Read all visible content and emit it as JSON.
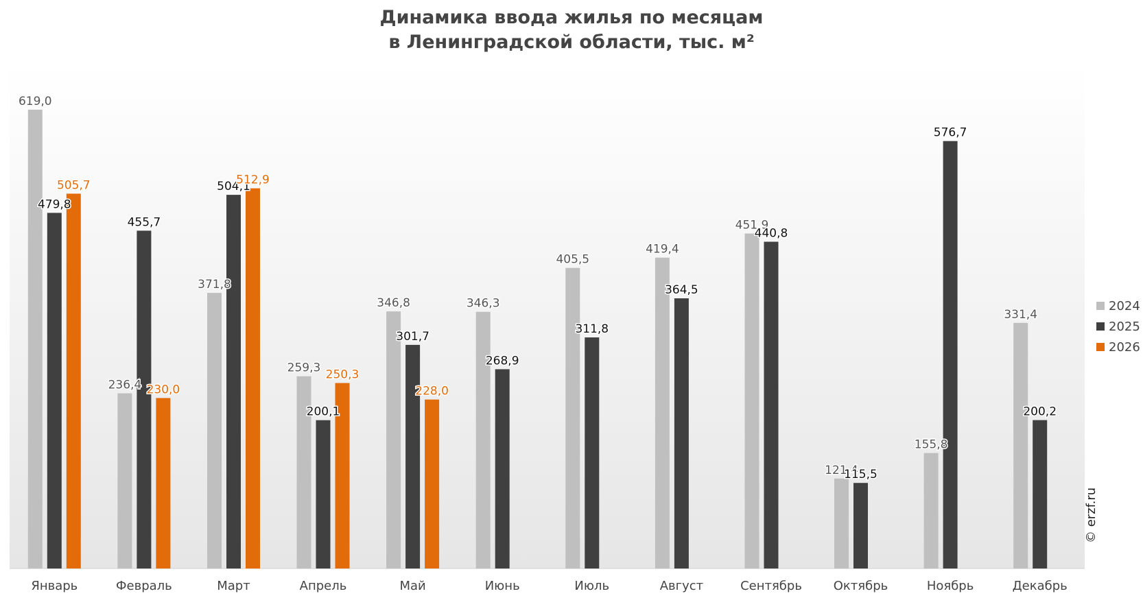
{
  "title_line1": "Динамика ввода жилья по месяцам",
  "title_line2": "в Ленинградской области, тыс. м²",
  "credit": "© erzf.ru",
  "colors": {
    "2024": "#bfbfbf",
    "2025": "#404040",
    "2026": "#e36c0a"
  },
  "chart_data": {
    "type": "bar",
    "title": "Динамика ввода жилья по месяцам в Ленинградской области, тыс. м²",
    "categories": [
      "Январь",
      "Февраль",
      "Март",
      "Апрель",
      "Май",
      "Июнь",
      "Июль",
      "Август",
      "Сентябрь",
      "Октябрь",
      "Ноябрь",
      "Декабрь"
    ],
    "series": [
      {
        "name": "2024",
        "values": [
          619.0,
          236.4,
          371.8,
          259.3,
          346.8,
          346.3,
          405.5,
          419.4,
          451.9,
          121.4,
          155.8,
          331.4
        ],
        "labels": [
          "619,0",
          "236,4",
          "371,8",
          "259,3",
          "346,8",
          "346,3",
          "405,5",
          "419,4",
          "451,9",
          "121,4",
          "155,8",
          "331,4"
        ]
      },
      {
        "name": "2025",
        "values": [
          479.8,
          455.7,
          504.1,
          200.1,
          301.7,
          268.9,
          311.8,
          364.5,
          440.8,
          115.5,
          576.7,
          200.2
        ],
        "labels": [
          "479,8",
          "455,7",
          "504,1",
          "200,1",
          "301,7",
          "268,9",
          "311,8",
          "364,5",
          "440,8",
          "115,5",
          "576,7",
          "200,2"
        ]
      },
      {
        "name": "2026",
        "values": [
          505.7,
          230.0,
          512.9,
          250.3,
          228.0,
          null,
          null,
          null,
          null,
          null,
          null,
          null
        ],
        "labels": [
          "505,7",
          "230,0",
          "512,9",
          "250,3",
          "228,0",
          "",
          "",
          "",
          "",
          "",
          "",
          ""
        ]
      }
    ],
    "ylim": [
      0,
      680
    ],
    "grid": false,
    "legend": "right"
  }
}
